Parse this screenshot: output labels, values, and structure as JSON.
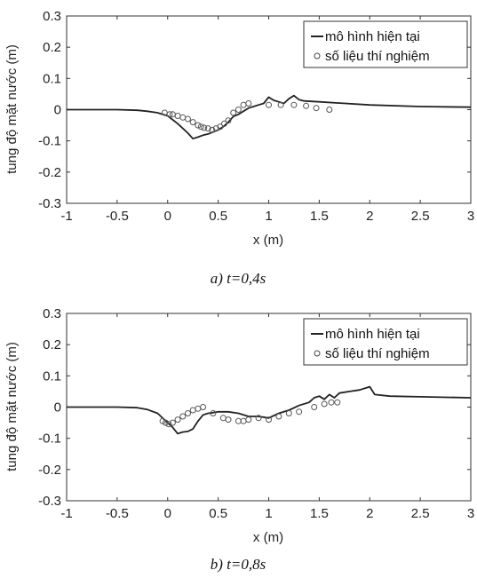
{
  "chart_data": [
    {
      "type": "line",
      "title": "",
      "caption": "a) t=0,4s",
      "xlabel": "x (m)",
      "ylabel": "tung độ mặt nước (m)",
      "xlim": [
        -1,
        3
      ],
      "ylim": [
        -0.3,
        0.3
      ],
      "xticks": [
        "-1",
        "-0.5",
        "0",
        "0.5",
        "1",
        "1.5",
        "2",
        "2.5",
        "3"
      ],
      "yticks": [
        "0.3",
        "0.2",
        "0.1",
        "0",
        "-0.1",
        "-0.2",
        "-0.3"
      ],
      "grid": false,
      "legend_position": "top-right",
      "series": [
        {
          "name": "mô hình hiện tại",
          "style": "line",
          "x": [
            -1,
            -0.5,
            -0.3,
            -0.2,
            -0.1,
            0,
            0.1,
            0.2,
            0.25,
            0.3,
            0.35,
            0.4,
            0.5,
            0.55,
            0.6,
            0.65,
            0.7,
            0.75,
            0.8,
            0.85,
            0.9,
            0.95,
            1.0,
            1.05,
            1.1,
            1.15,
            1.2,
            1.25,
            1.3,
            1.35,
            1.5,
            2.0,
            2.5,
            3.0
          ],
          "y": [
            0,
            0,
            -0.002,
            -0.005,
            -0.01,
            -0.02,
            -0.045,
            -0.075,
            -0.093,
            -0.088,
            -0.082,
            -0.078,
            -0.065,
            -0.055,
            -0.04,
            -0.022,
            -0.015,
            -0.005,
            0.005,
            0.01,
            0.015,
            0.02,
            0.04,
            0.03,
            0.025,
            0.02,
            0.035,
            0.045,
            0.032,
            0.028,
            0.025,
            0.015,
            0.01,
            0.008
          ]
        },
        {
          "name": "số liệu thí nghiệm",
          "style": "marker",
          "x": [
            -0.03,
            0.02,
            0.05,
            0.1,
            0.15,
            0.2,
            0.25,
            0.3,
            0.33,
            0.36,
            0.4,
            0.44,
            0.48,
            0.52,
            0.56,
            0.6,
            0.65,
            0.7,
            0.75,
            0.8,
            1.0,
            1.12,
            1.25,
            1.37,
            1.47,
            1.6
          ],
          "y": [
            -0.01,
            -0.015,
            -0.015,
            -0.02,
            -0.025,
            -0.03,
            -0.04,
            -0.05,
            -0.055,
            -0.058,
            -0.06,
            -0.065,
            -0.06,
            -0.055,
            -0.045,
            -0.035,
            -0.01,
            0.0,
            0.015,
            0.02,
            0.015,
            0.015,
            0.015,
            0.012,
            0.005,
            0.0
          ]
        }
      ]
    },
    {
      "type": "line",
      "title": "",
      "caption": "b) t=0,8s",
      "xlabel": "x (m)",
      "ylabel": "tung độ mặt nước (m)",
      "xlim": [
        -1,
        3
      ],
      "ylim": [
        -0.3,
        0.3
      ],
      "xticks": [
        "-1",
        "-0.5",
        "0",
        "0.5",
        "1",
        "1.5",
        "2",
        "2.5",
        "3"
      ],
      "yticks": [
        "0.3",
        "0.2",
        "0.1",
        "0",
        "-0.1",
        "-0.2",
        "-0.3"
      ],
      "grid": false,
      "legend_position": "top-right",
      "series": [
        {
          "name": "mô hình hiện tại",
          "style": "line",
          "x": [
            -1,
            -0.5,
            -0.3,
            -0.2,
            -0.1,
            0,
            0.05,
            0.1,
            0.15,
            0.2,
            0.25,
            0.3,
            0.35,
            0.4,
            0.45,
            0.5,
            0.6,
            0.7,
            0.8,
            0.9,
            1.0,
            1.1,
            1.2,
            1.3,
            1.4,
            1.45,
            1.5,
            1.55,
            1.6,
            1.65,
            1.7,
            1.8,
            1.9,
            1.95,
            2.0,
            2.05,
            2.2,
            2.5,
            3.0
          ],
          "y": [
            0,
            0,
            -0.002,
            -0.008,
            -0.02,
            -0.05,
            -0.065,
            -0.085,
            -0.08,
            -0.078,
            -0.07,
            -0.045,
            -0.025,
            -0.02,
            -0.018,
            -0.015,
            -0.015,
            -0.02,
            -0.03,
            -0.03,
            -0.035,
            -0.02,
            -0.01,
            0.005,
            0.015,
            0.03,
            0.035,
            0.025,
            0.04,
            0.03,
            0.045,
            0.05,
            0.055,
            0.06,
            0.065,
            0.04,
            0.035,
            0.033,
            0.03
          ]
        },
        {
          "name": "số liệu thí nghiệm",
          "style": "marker",
          "x": [
            -0.05,
            -0.02,
            0.01,
            0.05,
            0.1,
            0.15,
            0.2,
            0.25,
            0.3,
            0.35,
            0.45,
            0.55,
            0.6,
            0.7,
            0.75,
            0.8,
            0.9,
            1.0,
            1.1,
            1.2,
            1.3,
            1.45,
            1.55,
            1.62,
            1.68
          ],
          "y": [
            -0.045,
            -0.05,
            -0.055,
            -0.05,
            -0.04,
            -0.03,
            -0.02,
            -0.01,
            -0.005,
            0.0,
            -0.02,
            -0.035,
            -0.04,
            -0.045,
            -0.045,
            -0.04,
            -0.035,
            -0.04,
            -0.03,
            -0.02,
            -0.015,
            0.0,
            0.01,
            0.015,
            0.015
          ]
        }
      ]
    }
  ]
}
